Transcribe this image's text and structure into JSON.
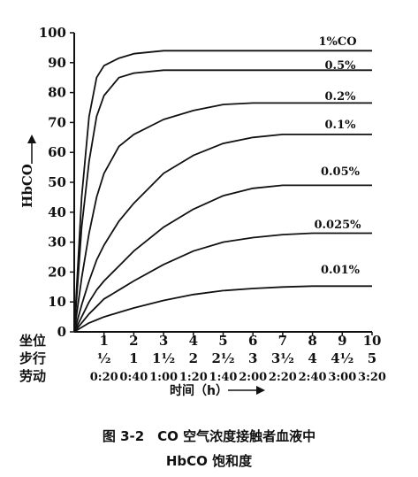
{
  "chart_data": {
    "type": "line",
    "ylabel": "HbCO",
    "ylim": [
      0,
      100
    ],
    "yticks": [
      "0",
      "10",
      "20",
      "30",
      "40",
      "50",
      "60",
      "70",
      "80",
      "90",
      "100"
    ],
    "xlim": [
      0,
      10
    ],
    "xtick_rows": {
      "坐位": [
        "1",
        "2",
        "3",
        "4",
        "5",
        "6",
        "7",
        "8",
        "9",
        "10"
      ],
      "步行": [
        "½",
        "1",
        "1½",
        "2",
        "2½",
        "3",
        "3½",
        "4",
        "4½",
        "5"
      ],
      "劳动": [
        "0:20",
        "0:40",
        "1:00",
        "1:20",
        "1:40",
        "2:00",
        "2:20",
        "2:40",
        "3:00",
        "3:20"
      ]
    },
    "row_labels": [
      "坐位",
      "步行",
      "劳动"
    ],
    "xlabel": "时间（h）",
    "x": [
      0,
      0.25,
      0.5,
      0.75,
      1,
      1.5,
      2,
      3,
      4,
      5,
      6,
      7,
      8,
      9,
      10
    ],
    "series": [
      {
        "name": "1%CO",
        "values": [
          0,
          45,
          72,
          85,
          89,
          91.5,
          93,
          94,
          94,
          94,
          94,
          94,
          94,
          94,
          94
        ]
      },
      {
        "name": "0.5%",
        "values": [
          0,
          35,
          57,
          72,
          79,
          85,
          86.5,
          87.5,
          87.5,
          87.5,
          87.5,
          87.5,
          87.5,
          87.5,
          87.5
        ]
      },
      {
        "name": "0.2%",
        "values": [
          0,
          18,
          33,
          45,
          53,
          62,
          66,
          71,
          74,
          76,
          76.5,
          76.5,
          76.5,
          76.5,
          76.5
        ]
      },
      {
        "name": "0.1%",
        "values": [
          0,
          9,
          17,
          24,
          29,
          37,
          43,
          53,
          59,
          63,
          65,
          66,
          66,
          66,
          66
        ]
      },
      {
        "name": "0.05%",
        "values": [
          0,
          5,
          10,
          14,
          17,
          22,
          27,
          35,
          41,
          45.5,
          48,
          49,
          49,
          49,
          49
        ]
      },
      {
        "name": "0.025%",
        "values": [
          0,
          3,
          6,
          8.5,
          11,
          14,
          17,
          22.5,
          27,
          30,
          31.5,
          32.5,
          33,
          33,
          33
        ]
      },
      {
        "name": "0.01%",
        "values": [
          0,
          1.5,
          3,
          4,
          5,
          6.5,
          8,
          10.5,
          12.5,
          13.8,
          14.5,
          15,
          15.3,
          15.3,
          15.3
        ]
      }
    ]
  },
  "caption": {
    "line1": "图 3-2　CO 空气浓度接触者血液中",
    "line2": "HbCO 饱和度"
  }
}
